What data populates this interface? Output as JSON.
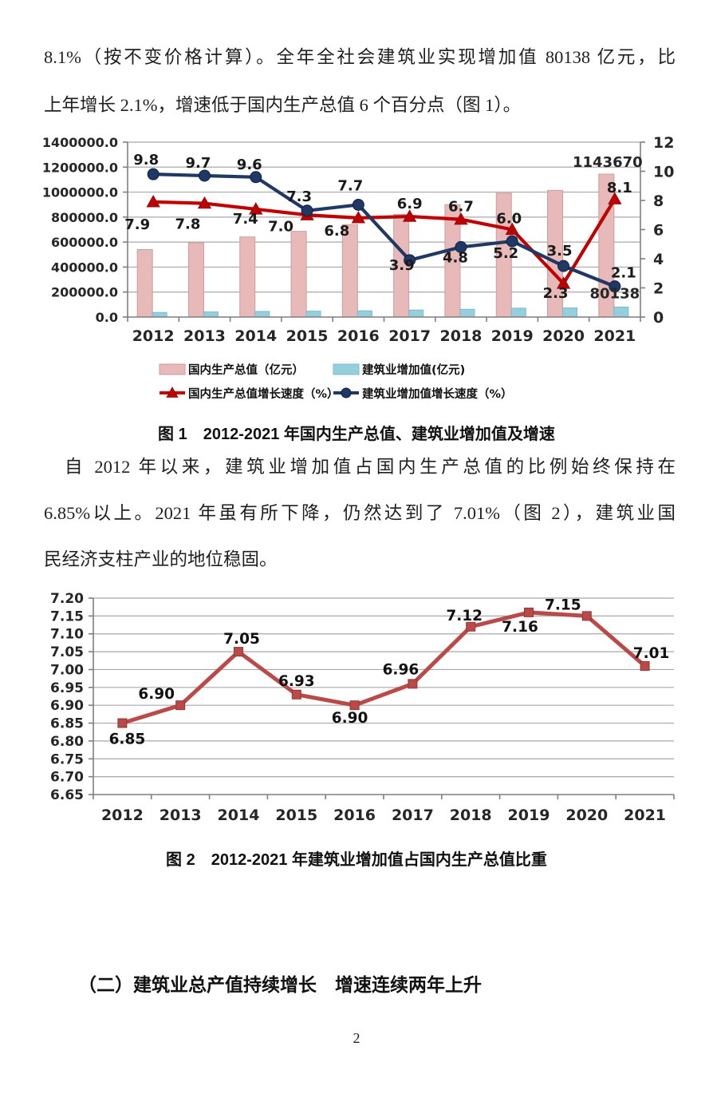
{
  "page_number": "2",
  "intro_paragraph": {
    "lines": [
      "8.1%（按不变价格计算）。全年全社会建筑业实现增加值 80138 亿元，比",
      "上年增长 2.1%，增速低于国内生产总值 6 个百分点（图 1）。"
    ]
  },
  "figure1": {
    "caption": "图 1　2012-2021 年国内生产总值、建筑业增加值及增速"
  },
  "body_paragraph": {
    "lines": [
      "自 2012 年以来，建筑业增加值占国内生产总值的比例始终保持在",
      "6.85%以上。2021 年虽有所下降，仍然达到了 7.01%（图 2），建筑业国",
      "民经济支柱产业的地位稳固。"
    ]
  },
  "figure2": {
    "caption": "图 2　2012-2021 年建筑业增加值占国内生产总值比重"
  },
  "section_heading": "（二）建筑业总产值持续增长　增速连续两年上升",
  "chart_data": [
    {
      "type": "bar",
      "subtype": "combo bar+line, dual axis",
      "categories": [
        "2012",
        "2013",
        "2014",
        "2015",
        "2016",
        "2017",
        "2018",
        "2019",
        "2020",
        "2021"
      ],
      "left_axis": {
        "min": 0,
        "max": 1400000,
        "step": 200000,
        "decimals": 1
      },
      "right_axis": {
        "min": 0,
        "max": 12,
        "step": 2
      },
      "grid": true,
      "legend_position": "bottom",
      "series": [
        {
          "name": "国内生产总值（亿元）",
          "kind": "bar",
          "axis": "left",
          "color": "#E7B9B8",
          "border_color": "#CE9C9B",
          "values": [
            540000,
            593000,
            641000,
            686000,
            740000,
            821000,
            900000,
            991000,
            1014000,
            1143670
          ],
          "point_labels": [
            null,
            null,
            null,
            null,
            null,
            null,
            null,
            null,
            null,
            "1143670"
          ]
        },
        {
          "name": "建筑业增加值(亿元)",
          "kind": "bar",
          "axis": "left",
          "color": "#95CEDD",
          "border_color": "#7CBCCD",
          "values": [
            37000,
            41000,
            45000,
            47000,
            50000,
            56000,
            62000,
            71000,
            73000,
            80138
          ],
          "point_labels": [
            null,
            null,
            null,
            null,
            null,
            null,
            null,
            null,
            null,
            "80138"
          ]
        },
        {
          "name": "国内生产总值增长速度（%）",
          "kind": "line",
          "axis": "right",
          "color": "#C00000",
          "marker": "triangle",
          "values": [
            7.9,
            7.8,
            7.4,
            7.0,
            6.8,
            6.9,
            6.7,
            6.0,
            2.3,
            8.1
          ],
          "point_labels": [
            "7.9",
            "7.8",
            "7.4",
            "7.0",
            "6.8",
            "6.9",
            "6.7",
            "6.0",
            "2.3",
            "8.1"
          ]
        },
        {
          "name": "建筑业增加值增长速度（%）",
          "kind": "line",
          "axis": "right",
          "color": "#1F3864",
          "marker": "circle",
          "values": [
            9.8,
            9.7,
            9.6,
            7.3,
            7.7,
            3.9,
            4.8,
            5.2,
            3.5,
            2.1
          ],
          "point_labels": [
            "9.8",
            "9.7",
            "9.6",
            "7.3",
            "7.7",
            "3.9",
            "4.8",
            "5.2",
            "3.5",
            "2.1"
          ]
        }
      ]
    },
    {
      "type": "line",
      "categories": [
        "2012",
        "2013",
        "2014",
        "2015",
        "2016",
        "2017",
        "2018",
        "2019",
        "2020",
        "2021"
      ],
      "ylim": [
        6.65,
        7.2
      ],
      "ystep": 0.05,
      "grid": true,
      "legend_position": "none",
      "series": [
        {
          "kind": "line",
          "color": "#B94A48",
          "marker": "square",
          "marker_border": "#8F3836",
          "values": [
            6.85,
            6.9,
            7.05,
            6.93,
            6.9,
            6.96,
            7.12,
            7.16,
            7.15,
            7.01
          ],
          "point_labels": [
            "6.85",
            "6.90",
            "7.05",
            "6.93",
            "6.90",
            "6.96",
            "7.12",
            "7.16",
            "7.15",
            "7.01"
          ]
        }
      ]
    }
  ]
}
